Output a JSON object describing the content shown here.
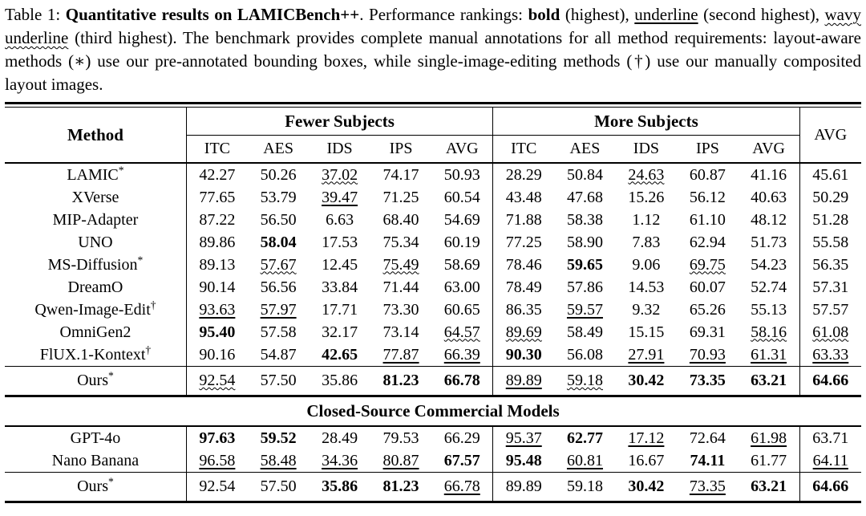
{
  "colors": {
    "text": "#000000",
    "background": "#ffffff",
    "rules": "#000000"
  },
  "caption": {
    "segments": [
      {
        "text": "Table 1: ",
        "style": "plain"
      },
      {
        "text": "Quantitative results on LAMICBench++",
        "style": "bold"
      },
      {
        "text": ". Performance rankings: ",
        "style": "plain"
      },
      {
        "text": "bold",
        "style": "bold"
      },
      {
        "text": " (highest), ",
        "style": "plain"
      },
      {
        "text": "underline",
        "style": "underline"
      },
      {
        "text": " (second highest), ",
        "style": "plain"
      },
      {
        "text": "wavy underline",
        "style": "wavy"
      },
      {
        "text": " (third highest). The benchmark provides complete manual annotations for all method requirements: layout-aware methods (∗) use our pre-annotated bounding boxes, while single-image-editing methods (†) use our manually composited layout images.",
        "style": "plain"
      }
    ]
  },
  "table": {
    "header": {
      "method": "Method",
      "groups": [
        {
          "label": "Fewer Subjects"
        },
        {
          "label": "More Subjects"
        }
      ],
      "subcols": [
        "ITC",
        "AES",
        "IDS",
        "IPS",
        "AVG"
      ],
      "avg": "AVG"
    },
    "style_codes": {
      "p": "plain",
      "b": "bold (highest)",
      "u": "underline (second highest)",
      "w": "wavy underline (third highest)"
    },
    "sections": [
      {
        "title": null,
        "rows": [
          {
            "method": "LAMIC",
            "sup": "*",
            "cells": [
              [
                "42.27",
                "p"
              ],
              [
                "50.26",
                "p"
              ],
              [
                "37.02",
                "w"
              ],
              [
                "74.17",
                "p"
              ],
              [
                "50.93",
                "p"
              ],
              [
                "28.29",
                "p"
              ],
              [
                "50.84",
                "p"
              ],
              [
                "24.63",
                "w"
              ],
              [
                "60.87",
                "p"
              ],
              [
                "41.16",
                "p"
              ],
              [
                "45.61",
                "p"
              ]
            ]
          },
          {
            "method": "XVerse",
            "sup": "",
            "cells": [
              [
                "77.65",
                "p"
              ],
              [
                "53.79",
                "p"
              ],
              [
                "39.47",
                "u"
              ],
              [
                "71.25",
                "p"
              ],
              [
                "60.54",
                "p"
              ],
              [
                "43.48",
                "p"
              ],
              [
                "47.68",
                "p"
              ],
              [
                "15.26",
                "p"
              ],
              [
                "56.12",
                "p"
              ],
              [
                "40.63",
                "p"
              ],
              [
                "50.29",
                "p"
              ]
            ]
          },
          {
            "method": "MIP-Adapter",
            "sup": "",
            "cells": [
              [
                "87.22",
                "p"
              ],
              [
                "56.50",
                "p"
              ],
              [
                "6.63",
                "p"
              ],
              [
                "68.40",
                "p"
              ],
              [
                "54.69",
                "p"
              ],
              [
                "71.88",
                "p"
              ],
              [
                "58.38",
                "p"
              ],
              [
                "1.12",
                "p"
              ],
              [
                "61.10",
                "p"
              ],
              [
                "48.12",
                "p"
              ],
              [
                "51.28",
                "p"
              ]
            ]
          },
          {
            "method": "UNO",
            "sup": "",
            "cells": [
              [
                "89.86",
                "p"
              ],
              [
                "58.04",
                "b"
              ],
              [
                "17.53",
                "p"
              ],
              [
                "75.34",
                "p"
              ],
              [
                "60.19",
                "p"
              ],
              [
                "77.25",
                "p"
              ],
              [
                "58.90",
                "p"
              ],
              [
                "7.83",
                "p"
              ],
              [
                "62.94",
                "p"
              ],
              [
                "51.73",
                "p"
              ],
              [
                "55.58",
                "p"
              ]
            ]
          },
          {
            "method": "MS-Diffusion",
            "sup": "*",
            "cells": [
              [
                "89.13",
                "p"
              ],
              [
                "57.67",
                "w"
              ],
              [
                "12.45",
                "p"
              ],
              [
                "75.49",
                "w"
              ],
              [
                "58.69",
                "p"
              ],
              [
                "78.46",
                "p"
              ],
              [
                "59.65",
                "b"
              ],
              [
                "9.06",
                "p"
              ],
              [
                "69.75",
                "w"
              ],
              [
                "54.23",
                "p"
              ],
              [
                "56.35",
                "p"
              ]
            ]
          },
          {
            "method": "DreamO",
            "sup": "",
            "cells": [
              [
                "90.14",
                "p"
              ],
              [
                "56.56",
                "p"
              ],
              [
                "33.84",
                "p"
              ],
              [
                "71.44",
                "p"
              ],
              [
                "63.00",
                "p"
              ],
              [
                "78.49",
                "p"
              ],
              [
                "57.86",
                "p"
              ],
              [
                "14.53",
                "p"
              ],
              [
                "60.07",
                "p"
              ],
              [
                "52.74",
                "p"
              ],
              [
                "57.31",
                "p"
              ]
            ]
          },
          {
            "method": "Qwen-Image-Edit",
            "sup": "†",
            "cells": [
              [
                "93.63",
                "u"
              ],
              [
                "57.97",
                "u"
              ],
              [
                "17.71",
                "p"
              ],
              [
                "73.30",
                "p"
              ],
              [
                "60.65",
                "p"
              ],
              [
                "86.35",
                "p"
              ],
              [
                "59.57",
                "u"
              ],
              [
                "9.32",
                "p"
              ],
              [
                "65.26",
                "p"
              ],
              [
                "55.13",
                "p"
              ],
              [
                "57.57",
                "p"
              ]
            ]
          },
          {
            "method": "OmniGen2",
            "sup": "",
            "cells": [
              [
                "95.40",
                "b"
              ],
              [
                "57.58",
                "p"
              ],
              [
                "32.17",
                "p"
              ],
              [
                "73.14",
                "p"
              ],
              [
                "64.57",
                "w"
              ],
              [
                "89.69",
                "w"
              ],
              [
                "58.49",
                "p"
              ],
              [
                "15.15",
                "p"
              ],
              [
                "69.31",
                "p"
              ],
              [
                "58.16",
                "w"
              ],
              [
                "61.08",
                "w"
              ]
            ]
          },
          {
            "method": "FlUX.1-Kontext",
            "sup": "†",
            "cells": [
              [
                "90.16",
                "p"
              ],
              [
                "54.87",
                "p"
              ],
              [
                "42.65",
                "b"
              ],
              [
                "77.87",
                "u"
              ],
              [
                "66.39",
                "u"
              ],
              [
                "90.30",
                "b"
              ],
              [
                "56.08",
                "p"
              ],
              [
                "27.91",
                "u"
              ],
              [
                "70.93",
                "u"
              ],
              [
                "61.31",
                "u"
              ],
              [
                "63.33",
                "u"
              ]
            ]
          }
        ],
        "ours": {
          "method": "Ours",
          "sup": "*",
          "cells": [
            [
              "92.54",
              "w"
            ],
            [
              "57.50",
              "p"
            ],
            [
              "35.86",
              "p"
            ],
            [
              "81.23",
              "b"
            ],
            [
              "66.78",
              "b"
            ],
            [
              "89.89",
              "u"
            ],
            [
              "59.18",
              "w"
            ],
            [
              "30.42",
              "b"
            ],
            [
              "73.35",
              "b"
            ],
            [
              "63.21",
              "b"
            ],
            [
              "64.66",
              "b"
            ]
          ]
        }
      },
      {
        "title": "Closed-Source Commercial Models",
        "rows": [
          {
            "method": "GPT-4o",
            "sup": "",
            "cells": [
              [
                "97.63",
                "b"
              ],
              [
                "59.52",
                "b"
              ],
              [
                "28.49",
                "p"
              ],
              [
                "79.53",
                "p"
              ],
              [
                "66.29",
                "p"
              ],
              [
                "95.37",
                "u"
              ],
              [
                "62.77",
                "b"
              ],
              [
                "17.12",
                "u"
              ],
              [
                "72.64",
                "p"
              ],
              [
                "61.98",
                "u"
              ],
              [
                "63.71",
                "p"
              ]
            ]
          },
          {
            "method": "Nano Banana",
            "sup": "",
            "cells": [
              [
                "96.58",
                "u"
              ],
              [
                "58.48",
                "u"
              ],
              [
                "34.36",
                "u"
              ],
              [
                "80.87",
                "u"
              ],
              [
                "67.57",
                "b"
              ],
              [
                "95.48",
                "b"
              ],
              [
                "60.81",
                "u"
              ],
              [
                "16.67",
                "p"
              ],
              [
                "74.11",
                "b"
              ],
              [
                "61.77",
                "p"
              ],
              [
                "64.11",
                "u"
              ]
            ]
          }
        ],
        "ours": {
          "method": "Ours",
          "sup": "*",
          "cells": [
            [
              "92.54",
              "p"
            ],
            [
              "57.50",
              "p"
            ],
            [
              "35.86",
              "b"
            ],
            [
              "81.23",
              "b"
            ],
            [
              "66.78",
              "u"
            ],
            [
              "89.89",
              "p"
            ],
            [
              "59.18",
              "p"
            ],
            [
              "30.42",
              "b"
            ],
            [
              "73.35",
              "u"
            ],
            [
              "63.21",
              "b"
            ],
            [
              "64.66",
              "b"
            ]
          ]
        }
      }
    ]
  }
}
